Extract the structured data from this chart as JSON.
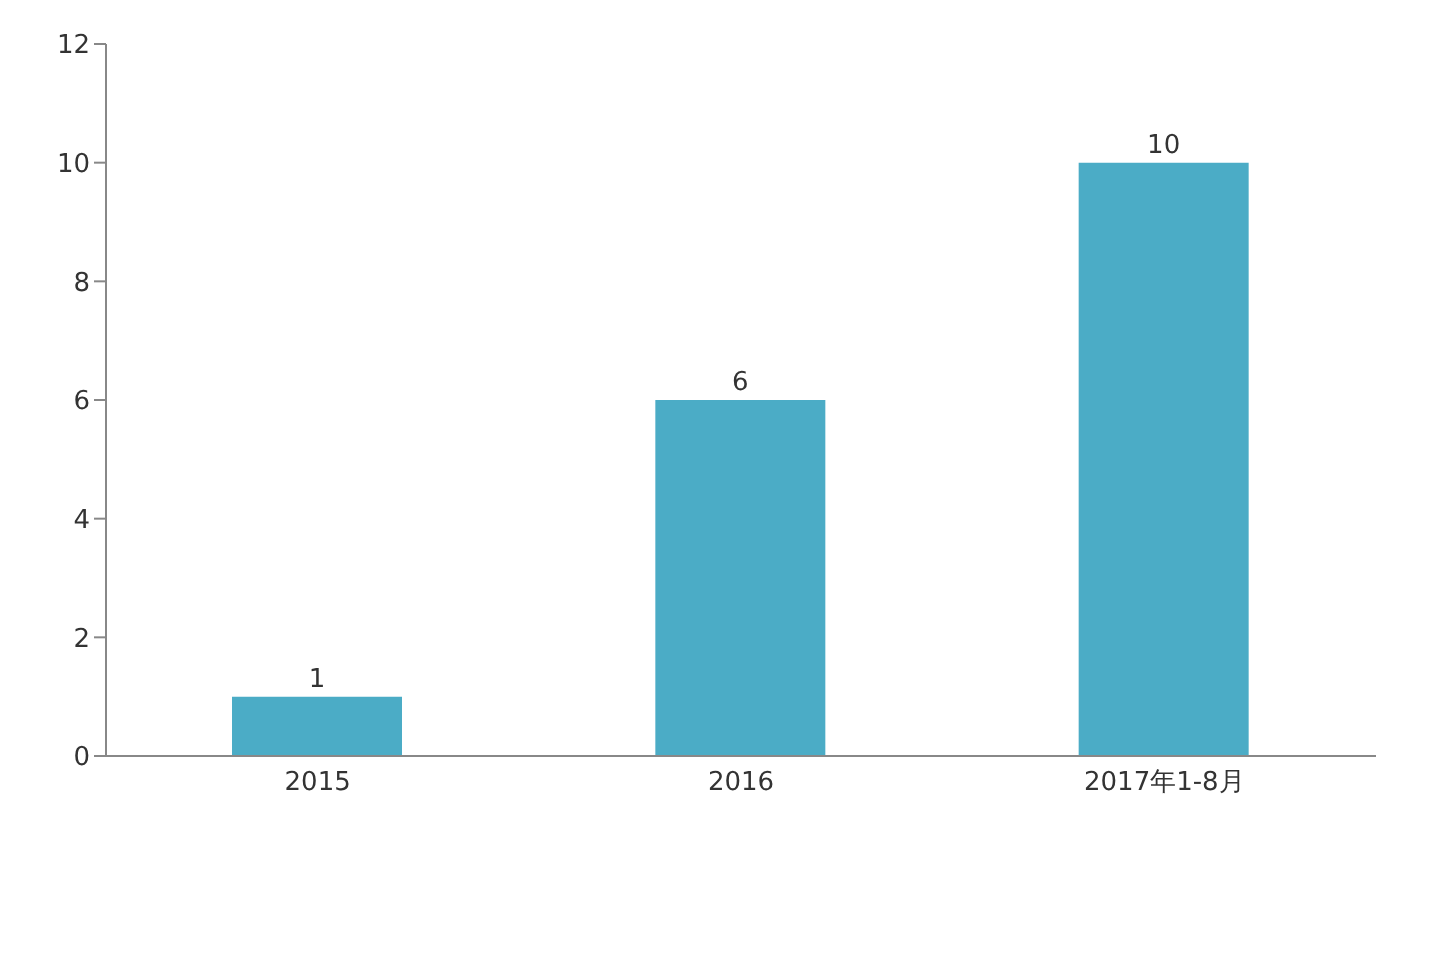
{
  "chart_data": {
    "type": "bar",
    "categories": [
      "2015",
      "2016",
      "2017年1-8月"
    ],
    "values": [
      1,
      6,
      10
    ],
    "color": "#4bacc6",
    "ylim": [
      0,
      12
    ],
    "yticks": [
      0,
      2,
      4,
      6,
      8,
      10,
      12
    ],
    "grid": false,
    "data_labels": true
  }
}
